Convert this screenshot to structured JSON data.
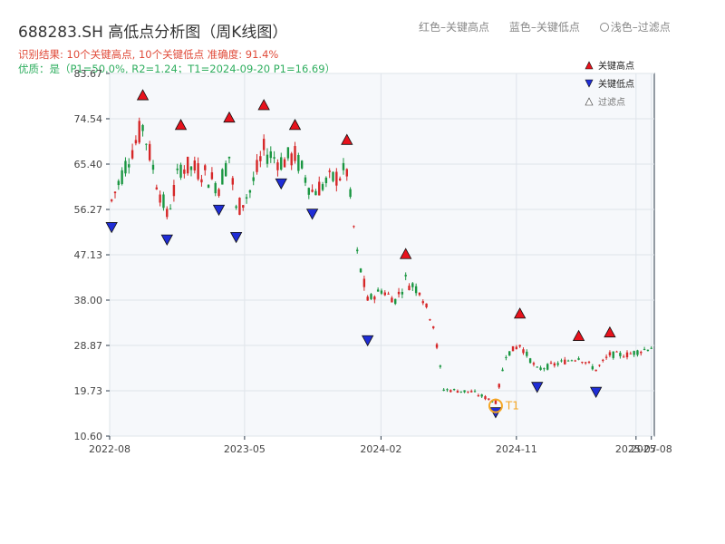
{
  "header": {
    "title": "688283.SH 高低点分析图（周K线图）",
    "result_line": "识别结果: 10个关键高点, 10个关键低点   准确度: 91.4%",
    "quality_line": "优质：是（P1=50.0%, R2=1.24；T1=2024-09-20 P1=16.69）",
    "legend_red": "红色–关键高点",
    "legend_blue": "蓝色–关键低点",
    "legend_light": "浅色–过滤点"
  },
  "chart_data": {
    "type": "candlestick",
    "title": "688283.SH 高低点分析图（周K线图）",
    "x_ticks": [
      "2022-08",
      "2023-05",
      "2024-02",
      "2024-11",
      "2025-07",
      "2025-08"
    ],
    "y_ticks": [
      10.6,
      19.73,
      28.87,
      38.0,
      47.13,
      56.27,
      65.4,
      74.54,
      83.67
    ],
    "ylim": [
      10.6,
      83.67
    ],
    "grid": true,
    "legend_position": "top-right",
    "legend": [
      "关键高点",
      "关键低点",
      "过滤点"
    ],
    "colors": {
      "up": "#d62728",
      "down": "#1a9641",
      "high_marker": "#e8121c",
      "low_marker": "#1f2dd6",
      "annotation": "#f5a623"
    },
    "key_highs": [
      {
        "date": "2022-10-07",
        "price": 78.0
      },
      {
        "date": "2022-12-23",
        "price": 72.0
      },
      {
        "date": "2023-03-31",
        "price": 73.5
      },
      {
        "date": "2023-06-09",
        "price": 76.0
      },
      {
        "date": "2023-08-11",
        "price": 72.0
      },
      {
        "date": "2023-11-24",
        "price": 69.0
      },
      {
        "date": "2024-03-22",
        "price": 46.0
      },
      {
        "date": "2024-11-08",
        "price": 34.0
      },
      {
        "date": "2025-03-07",
        "price": 29.5
      },
      {
        "date": "2025-05-09",
        "price": 30.2
      }
    ],
    "key_lows": [
      {
        "date": "2022-08-05",
        "price": 54.0
      },
      {
        "date": "2022-11-25",
        "price": 51.5
      },
      {
        "date": "2023-03-10",
        "price": 57.5
      },
      {
        "date": "2023-04-14",
        "price": 52.0
      },
      {
        "date": "2023-07-14",
        "price": 62.8
      },
      {
        "date": "2023-09-15",
        "price": 56.7
      },
      {
        "date": "2024-01-05",
        "price": 31.2
      },
      {
        "date": "2024-09-20",
        "price": 16.7
      },
      {
        "date": "2024-12-13",
        "price": 21.8
      },
      {
        "date": "2025-04-11",
        "price": 20.8
      }
    ],
    "annotation": {
      "label": "T1",
      "date": "2024-09-20",
      "price": 16.69
    },
    "trend": [
      [
        "2022-08-05",
        58
      ],
      [
        "2022-09-09",
        67
      ],
      [
        "2022-10-07",
        73
      ],
      [
        "2022-11-04",
        62
      ],
      [
        "2022-11-25",
        55
      ],
      [
        "2022-12-23",
        65
      ],
      [
        "2023-02-03",
        64
      ],
      [
        "2023-03-10",
        61
      ],
      [
        "2023-03-31",
        67
      ],
      [
        "2023-04-14",
        56
      ],
      [
        "2023-05-12",
        60
      ],
      [
        "2023-06-09",
        68
      ],
      [
        "2023-07-14",
        66
      ],
      [
        "2023-08-11",
        67
      ],
      [
        "2023-09-15",
        60
      ],
      [
        "2023-10-20",
        62
      ],
      [
        "2023-11-24",
        64
      ],
      [
        "2023-12-15",
        47
      ],
      [
        "2024-01-05",
        38
      ],
      [
        "2024-02-02",
        40
      ],
      [
        "2024-03-01",
        38
      ],
      [
        "2024-03-22",
        42
      ],
      [
        "2024-04-19",
        40
      ],
      [
        "2024-05-17",
        33
      ],
      [
        "2024-06-07",
        20
      ],
      [
        "2024-08-02",
        19.5
      ],
      [
        "2024-09-20",
        17.5
      ],
      [
        "2024-10-11",
        27
      ],
      [
        "2024-11-08",
        29
      ],
      [
        "2024-12-13",
        24
      ],
      [
        "2025-01-17",
        25
      ],
      [
        "2025-03-07",
        26.5
      ],
      [
        "2025-04-11",
        24
      ],
      [
        "2025-05-09",
        27
      ],
      [
        "2025-06-13",
        27
      ],
      [
        "2025-08-01",
        28.5
      ]
    ]
  }
}
